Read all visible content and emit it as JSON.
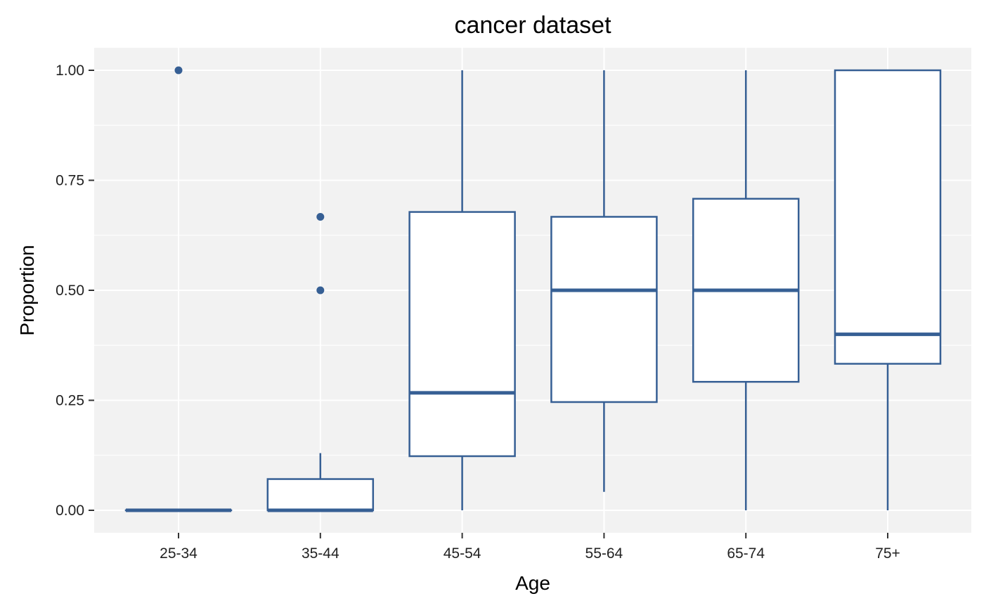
{
  "chart_data": {
    "type": "box",
    "title": "cancer dataset",
    "xlabel": "Age",
    "ylabel": "Proportion",
    "ylim": [
      -0.05,
      1.05
    ],
    "y_ticks": [
      0,
      0.25,
      0.5,
      0.75,
      1.0
    ],
    "y_tick_labels": [
      "0.00",
      "0.25",
      "0.50",
      "0.75",
      "1.00"
    ],
    "categories": [
      "25-34",
      "35-44",
      "45-54",
      "55-64",
      "65-74",
      "75+"
    ],
    "boxes": [
      {
        "category": "25-34",
        "whisker_low": 0.0,
        "q1": 0.0,
        "median": 0.0,
        "q3": 0.0,
        "whisker_high": 0.0,
        "outliers": [
          1.0
        ]
      },
      {
        "category": "35-44",
        "whisker_low": 0.0,
        "q1": 0.0,
        "median": 0.0,
        "q3": 0.071,
        "whisker_high": 0.13,
        "outliers": [
          0.5,
          0.667
        ]
      },
      {
        "category": "45-54",
        "whisker_low": 0.0,
        "q1": 0.123,
        "median": 0.267,
        "q3": 0.678,
        "whisker_high": 1.0,
        "outliers": []
      },
      {
        "category": "55-64",
        "whisker_low": 0.042,
        "q1": 0.246,
        "median": 0.5,
        "q3": 0.667,
        "whisker_high": 1.0,
        "outliers": []
      },
      {
        "category": "65-74",
        "whisker_low": 0.0,
        "q1": 0.292,
        "median": 0.5,
        "q3": 0.708,
        "whisker_high": 1.0,
        "outliers": []
      },
      {
        "category": "75+",
        "whisker_low": 0.0,
        "q1": 0.333,
        "median": 0.4,
        "q3": 1.0,
        "whisker_high": 1.0,
        "outliers": []
      }
    ],
    "grid": true,
    "colors": {
      "box_stroke": "#365f94",
      "panel_bg": "#f2f2f2",
      "grid": "#ffffff",
      "box_fill": "#ffffff"
    }
  }
}
